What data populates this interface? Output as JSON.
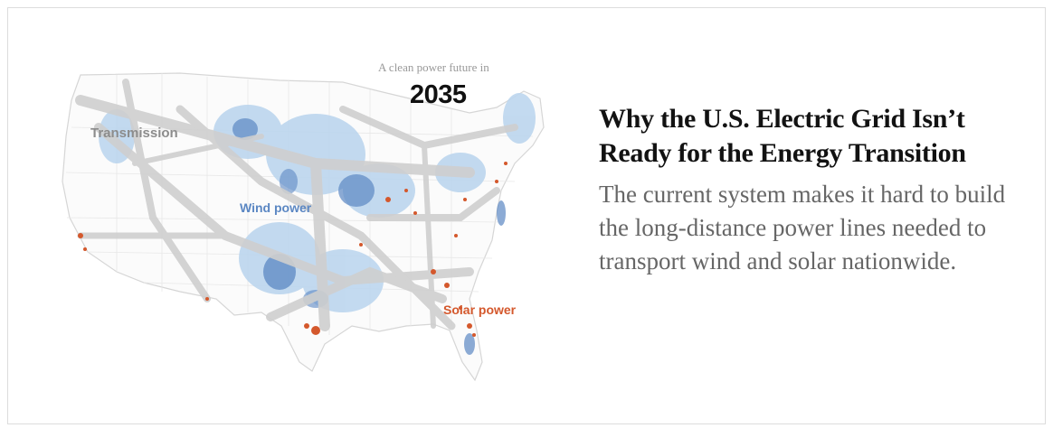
{
  "card": {
    "map": {
      "caption_top": "A clean power future in",
      "caption_year": "2035",
      "labels": {
        "transmission": "Transmission",
        "wind": "Wind power",
        "solar": "Solar power"
      },
      "colors": {
        "transmission": "#cfcfcf",
        "wind_light": "#bcd6ee",
        "wind_dark": "#5b87c3",
        "solar": "#d4582c",
        "borders": "#e6e6e6"
      }
    },
    "headline": "Why the U.S. Electric Grid Isn’t Ready for the Energy Transition",
    "summary": "The current system makes it hard to build the long-distance power lines needed to transport wind and solar nationwide."
  }
}
